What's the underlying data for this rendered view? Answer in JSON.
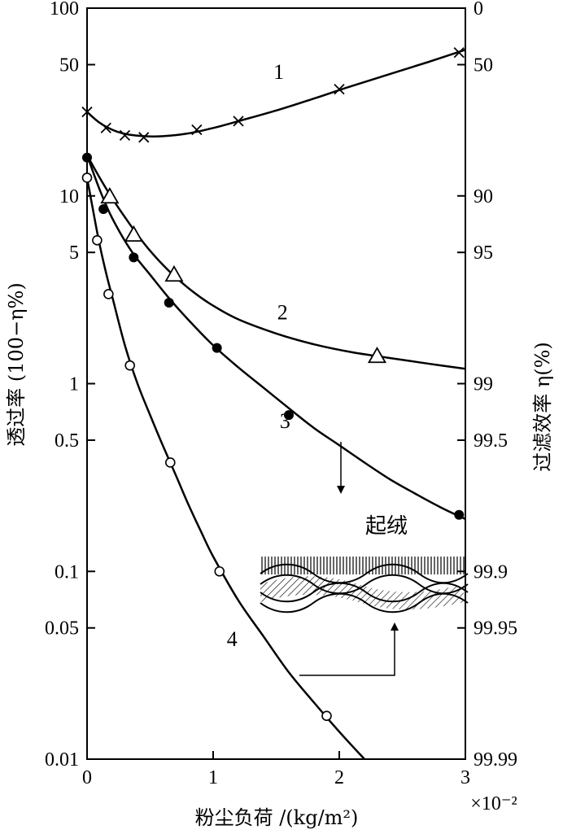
{
  "chart_data": {
    "type": "line",
    "xlabel": "粉尘负荷 /(kg/m²)",
    "x_multiplier": "×10⁻²",
    "ylabel_left": "透过率 (100−η%)",
    "ylabel_right": "过滤效率 η(%)",
    "y_scale": "log",
    "xlim": [
      0,
      3
    ],
    "ylim": [
      0.01,
      100
    ],
    "x_ticks": [
      "0",
      "1",
      "2",
      "3"
    ],
    "y_ticks_left": [
      {
        "value": 100,
        "label": "100"
      },
      {
        "value": 50,
        "label": "50"
      },
      {
        "value": 10,
        "label": "10"
      },
      {
        "value": 5,
        "label": "5"
      },
      {
        "value": 1,
        "label": "1"
      },
      {
        "value": 0.5,
        "label": "0.5"
      },
      {
        "value": 0.1,
        "label": "0.1"
      },
      {
        "value": 0.05,
        "label": "0.05"
      },
      {
        "value": 0.01,
        "label": "0.01"
      }
    ],
    "y_ticks_right": [
      {
        "value": 100,
        "label": "0"
      },
      {
        "value": 50,
        "label": "50"
      },
      {
        "value": 10,
        "label": "90"
      },
      {
        "value": 5,
        "label": "95"
      },
      {
        "value": 1,
        "label": "99"
      },
      {
        "value": 0.5,
        "label": "99.5"
      },
      {
        "value": 0.1,
        "label": "99.9"
      },
      {
        "value": 0.05,
        "label": "99.95"
      },
      {
        "value": 0.01,
        "label": "99.99"
      }
    ],
    "series": [
      {
        "name": "1",
        "marker": "x",
        "points": [
          [
            0,
            28
          ],
          [
            0.15,
            23
          ],
          [
            0.3,
            21
          ],
          [
            0.45,
            20.5
          ],
          [
            0.87,
            22.5
          ],
          [
            1.2,
            25
          ],
          [
            2.0,
            37
          ],
          [
            2.95,
            58
          ]
        ],
        "curve": [
          [
            0,
            28
          ],
          [
            0.1,
            24.5
          ],
          [
            0.2,
            22.5
          ],
          [
            0.3,
            21.4
          ],
          [
            0.45,
            20.8
          ],
          [
            0.6,
            20.8
          ],
          [
            0.8,
            21.5
          ],
          [
            1.0,
            23
          ],
          [
            1.2,
            25
          ],
          [
            1.5,
            28.5
          ],
          [
            1.8,
            33
          ],
          [
            2.1,
            38.5
          ],
          [
            2.4,
            44.5
          ],
          [
            2.7,
            51.5
          ],
          [
            3.0,
            60
          ]
        ]
      },
      {
        "name": "2",
        "marker": "triangle",
        "points": [
          [
            0.18,
            9.9
          ],
          [
            0.37,
            6.2
          ],
          [
            0.69,
            3.8
          ],
          [
            2.3,
            1.4
          ]
        ],
        "curve": [
          [
            0,
            16.5
          ],
          [
            0.1,
            12.5
          ],
          [
            0.2,
            9.7
          ],
          [
            0.3,
            7.7
          ],
          [
            0.4,
            6.2
          ],
          [
            0.5,
            5.1
          ],
          [
            0.6,
            4.3
          ],
          [
            0.7,
            3.7
          ],
          [
            0.85,
            3.05
          ],
          [
            1.0,
            2.6
          ],
          [
            1.2,
            2.2
          ],
          [
            1.5,
            1.85
          ],
          [
            1.8,
            1.62
          ],
          [
            2.1,
            1.47
          ],
          [
            2.4,
            1.37
          ],
          [
            2.7,
            1.28
          ],
          [
            3.0,
            1.2
          ]
        ]
      },
      {
        "name": "3",
        "marker": "filled-circle",
        "points": [
          [
            0,
            16
          ],
          [
            0.13,
            8.5
          ],
          [
            0.37,
            4.7
          ],
          [
            0.65,
            2.7
          ],
          [
            1.03,
            1.55
          ],
          [
            1.6,
            0.68
          ],
          [
            2.95,
            0.2
          ]
        ],
        "curve": [
          [
            0,
            16.5
          ],
          [
            0.1,
            10.8
          ],
          [
            0.2,
            7.6
          ],
          [
            0.35,
            5.1
          ],
          [
            0.5,
            3.8
          ],
          [
            0.65,
            2.85
          ],
          [
            0.8,
            2.2
          ],
          [
            1.0,
            1.6
          ],
          [
            1.2,
            1.22
          ],
          [
            1.4,
            0.95
          ],
          [
            1.6,
            0.74
          ],
          [
            1.8,
            0.58
          ],
          [
            2.0,
            0.47
          ],
          [
            2.2,
            0.38
          ],
          [
            2.4,
            0.31
          ],
          [
            2.6,
            0.26
          ],
          [
            2.8,
            0.22
          ],
          [
            3.0,
            0.19
          ]
        ]
      },
      {
        "name": "4",
        "marker": "open-circle",
        "points": [
          [
            0,
            12.5
          ],
          [
            0.08,
            5.8
          ],
          [
            0.17,
            3.0
          ],
          [
            0.34,
            1.25
          ],
          [
            0.66,
            0.38
          ],
          [
            1.05,
            0.1
          ],
          [
            1.9,
            0.017
          ]
        ],
        "curve": [
          [
            0,
            12.5
          ],
          [
            0.05,
            8.2
          ],
          [
            0.1,
            5.5
          ],
          [
            0.15,
            3.9
          ],
          [
            0.2,
            2.9
          ],
          [
            0.3,
            1.6
          ],
          [
            0.4,
            1.0
          ],
          [
            0.5,
            0.68
          ],
          [
            0.6,
            0.47
          ],
          [
            0.7,
            0.33
          ],
          [
            0.8,
            0.23
          ],
          [
            0.9,
            0.165
          ],
          [
            1.0,
            0.12
          ],
          [
            1.2,
            0.07
          ],
          [
            1.4,
            0.045
          ],
          [
            1.6,
            0.029
          ],
          [
            1.8,
            0.02
          ],
          [
            2.0,
            0.014
          ],
          [
            2.2,
            0.01
          ]
        ]
      }
    ],
    "annotations": {
      "raised_nap_label": "起绒"
    }
  }
}
